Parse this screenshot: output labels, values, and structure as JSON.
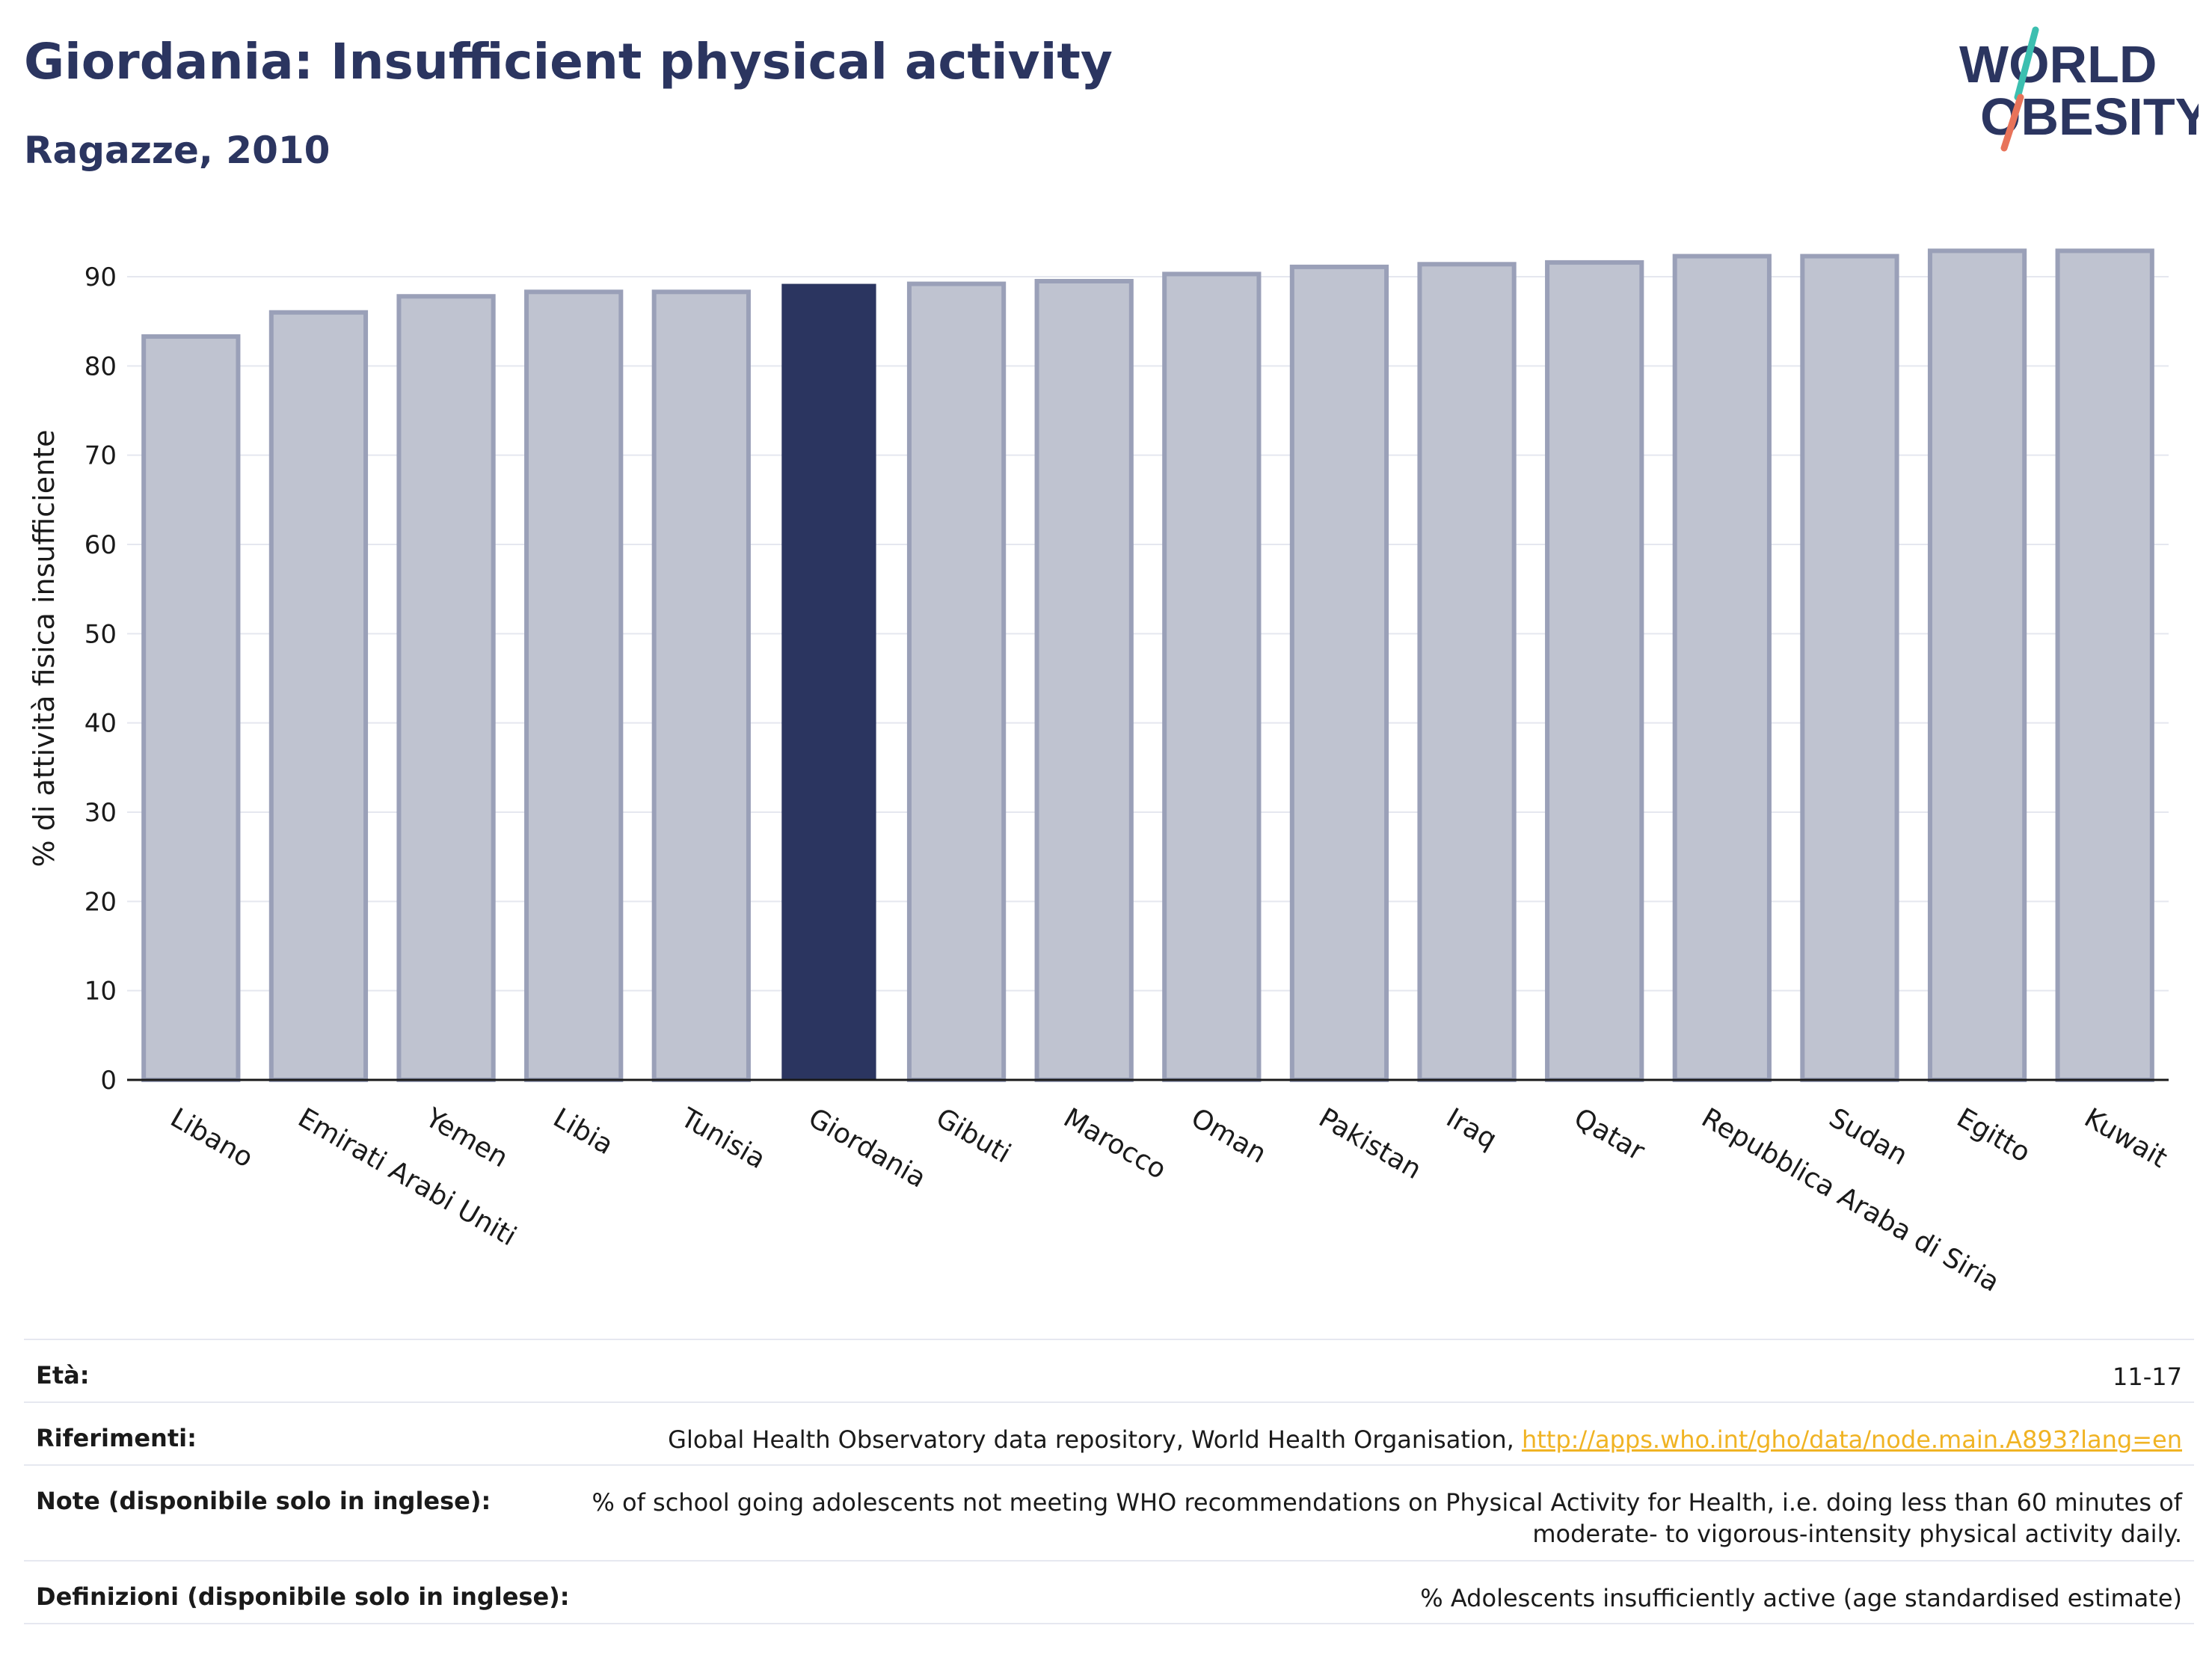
{
  "header": {
    "title": "Giordania: Insufficient physical activity",
    "subtitle": "Ragazze, 2010"
  },
  "logo": {
    "line1": "WORLD",
    "line2": "OBESITY",
    "accent_colors": [
      "#3cbfb0",
      "#e8735a"
    ]
  },
  "colors": {
    "highlight": "#2b3560",
    "bar": "#bfc3d0",
    "bar_border": "#9aa0b8",
    "grid": "#e5e7ef",
    "link": "#f0b323"
  },
  "chart_data": {
    "type": "bar",
    "title": "Giordania: Insufficient physical activity",
    "subtitle": "Ragazze, 2010",
    "xlabel": "",
    "ylabel": "% di attività fisica insufficiente",
    "ylim": [
      0,
      95
    ],
    "yticks": [
      0,
      10,
      20,
      30,
      40,
      50,
      60,
      70,
      80,
      90
    ],
    "grid": true,
    "highlight": "Giordania",
    "categories": [
      "Libano",
      "Emirati Arabi Uniti",
      "Yemen",
      "Libia",
      "Tunisia",
      "Giordania",
      "Gibuti",
      "Marocco",
      "Oman",
      "Pakistan",
      "Iraq",
      "Qatar",
      "Repubblica Araba di Siria",
      "Sudan",
      "Egitto",
      "Kuwait"
    ],
    "values": [
      83.3,
      86.0,
      87.8,
      88.3,
      88.3,
      89.2,
      89.2,
      89.5,
      90.3,
      91.1,
      91.4,
      91.6,
      92.3,
      92.3,
      92.9,
      92.9
    ]
  },
  "info": {
    "eta_label": "Età:",
    "eta_value": "11-17",
    "rif_label": "Riferimenti:",
    "rif_text": "Global Health Observatory data repository, World Health Organisation, ",
    "rif_link": "http://apps.who.int/gho/data/node.main.A893?lang=en",
    "note_label": "Note (disponibile solo in inglese):",
    "note_value": "% of school going adolescents not meeting WHO recommendations on Physical Activity for Health, i.e. doing less than 60 minutes of moderate- to vigorous-intensity physical activity daily.",
    "def_label": "Definizioni (disponibile solo in inglese):",
    "def_value": "% Adolescents insufficiently active (age standardised estimate)"
  }
}
